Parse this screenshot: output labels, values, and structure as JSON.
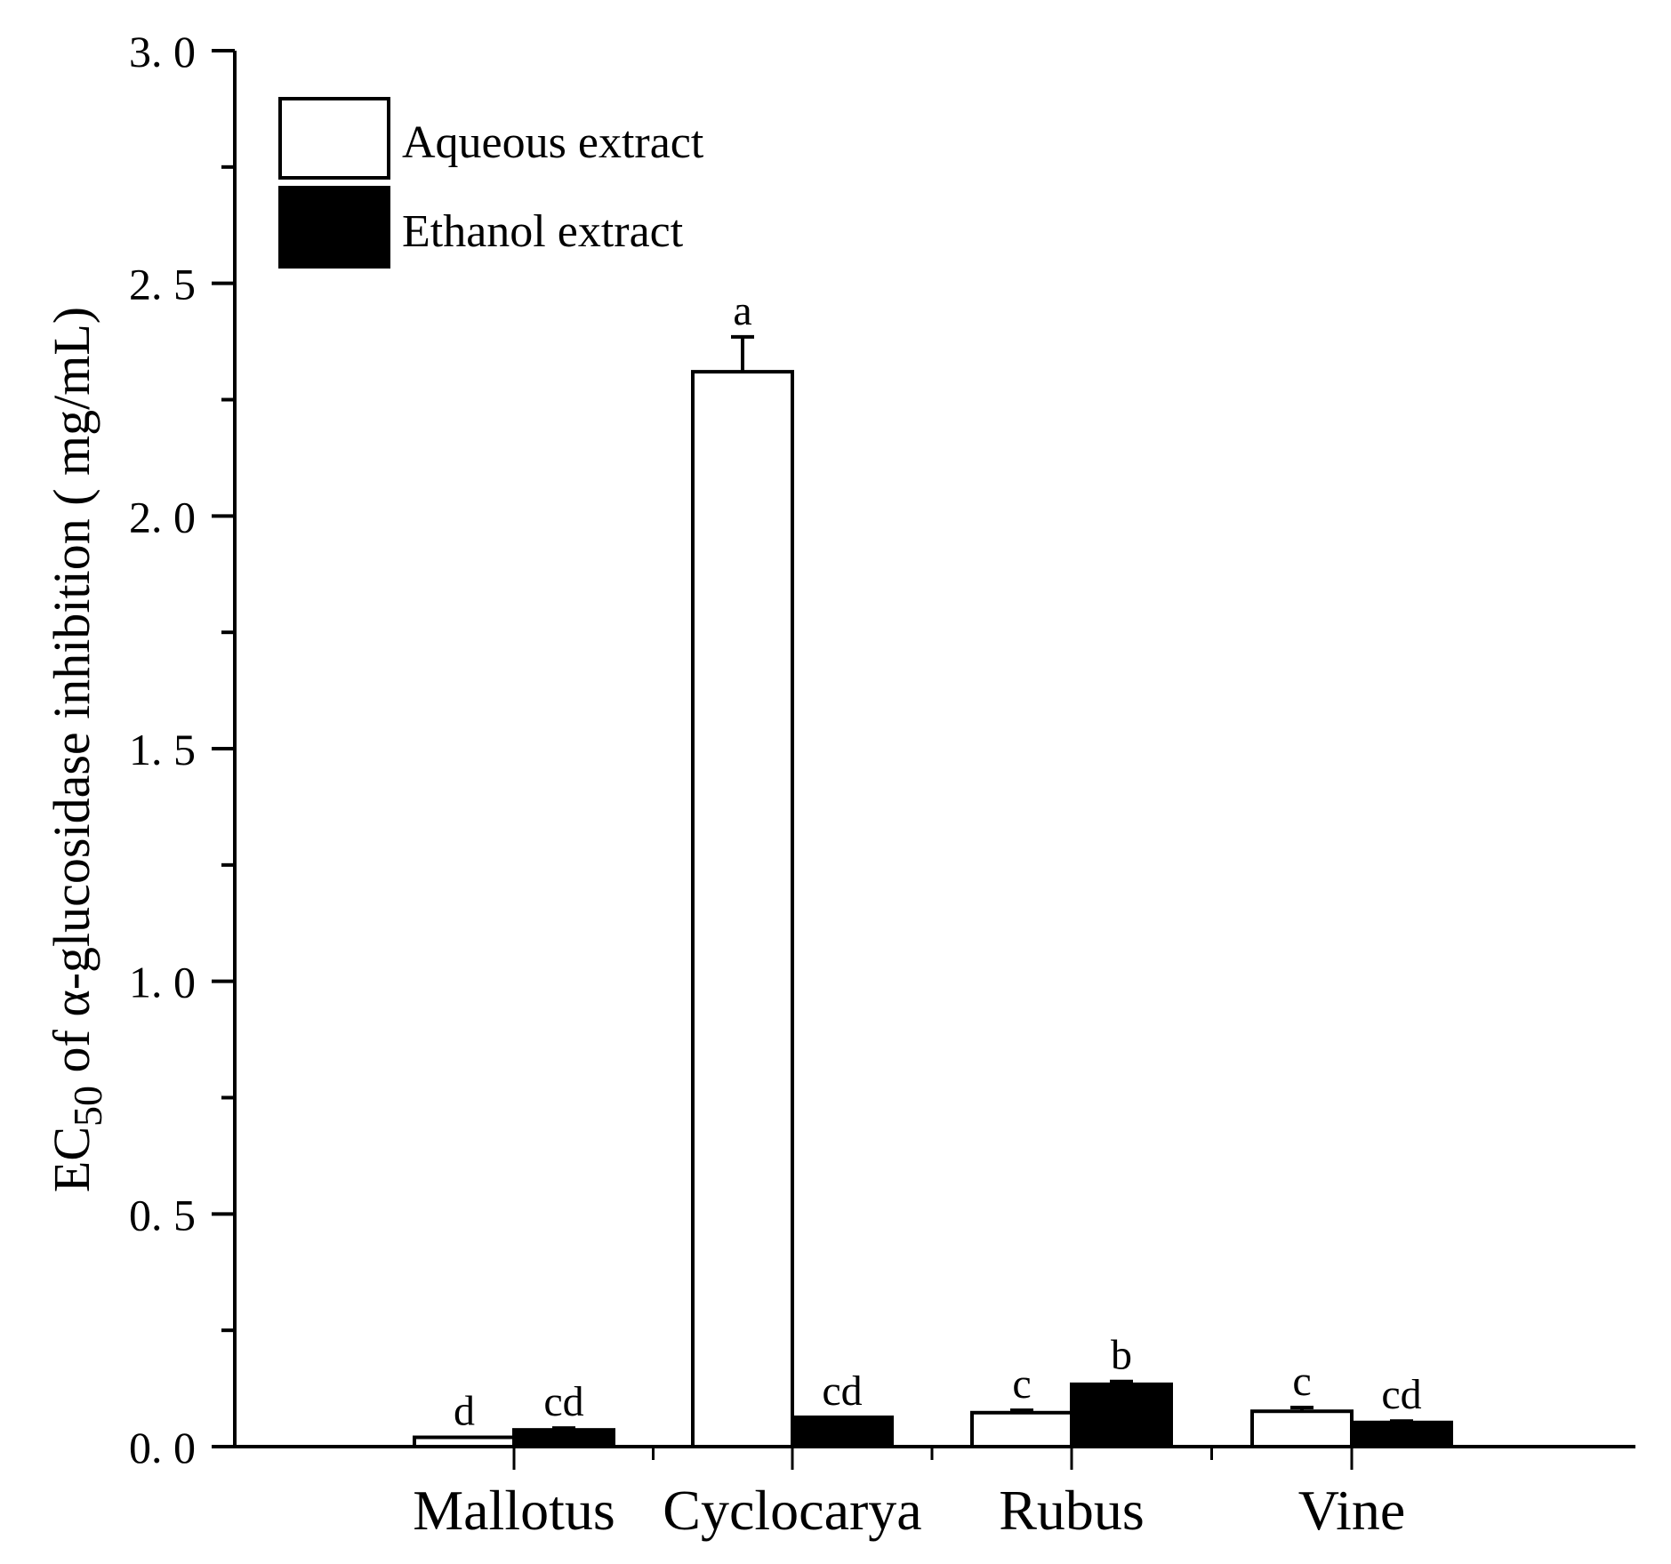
{
  "chart_data": {
    "type": "bar",
    "title": "",
    "xlabel": "",
    "ylabel": "EC50 of α-glucosidase inhibition ( mg/mL)",
    "ylabel_parts": {
      "main_before": "EC",
      "subscript": "50",
      "main_after": " of α-glucosidase inhibition ( mg/mL)"
    },
    "ylim": [
      0,
      3.0
    ],
    "yticks": [
      0.0,
      0.5,
      1.0,
      1.5,
      2.0,
      2.5,
      3.0
    ],
    "ytick_labels": [
      "0. 0",
      "0. 5",
      "1. 0",
      "1. 5",
      "2. 0",
      "2. 5",
      "3. 0"
    ],
    "minor_yticks": [
      0.25,
      0.75,
      1.25,
      1.75,
      2.25,
      2.75
    ],
    "grid": false,
    "legend_position": "upper-left",
    "categories": [
      "Mallotus",
      "Cyclocarya",
      "Rubus",
      "Vine"
    ],
    "series": [
      {
        "name": "Aqueous extract",
        "fill": "#ffffff",
        "stroke": "#000000",
        "values": [
          0.02,
          2.31,
          0.073,
          0.076
        ],
        "errors": [
          0.0,
          0.075,
          0.005,
          0.008
        ],
        "significance": [
          "d",
          "a",
          "c",
          "c"
        ]
      },
      {
        "name": "Ethanol extract",
        "fill": "#000000",
        "stroke": "#000000",
        "values": [
          0.036,
          0.063,
          0.134,
          0.052
        ],
        "errors": [
          0.004,
          0.0,
          0.006,
          0.003
        ],
        "significance": [
          "cd",
          "cd",
          "b",
          "cd"
        ]
      }
    ]
  }
}
